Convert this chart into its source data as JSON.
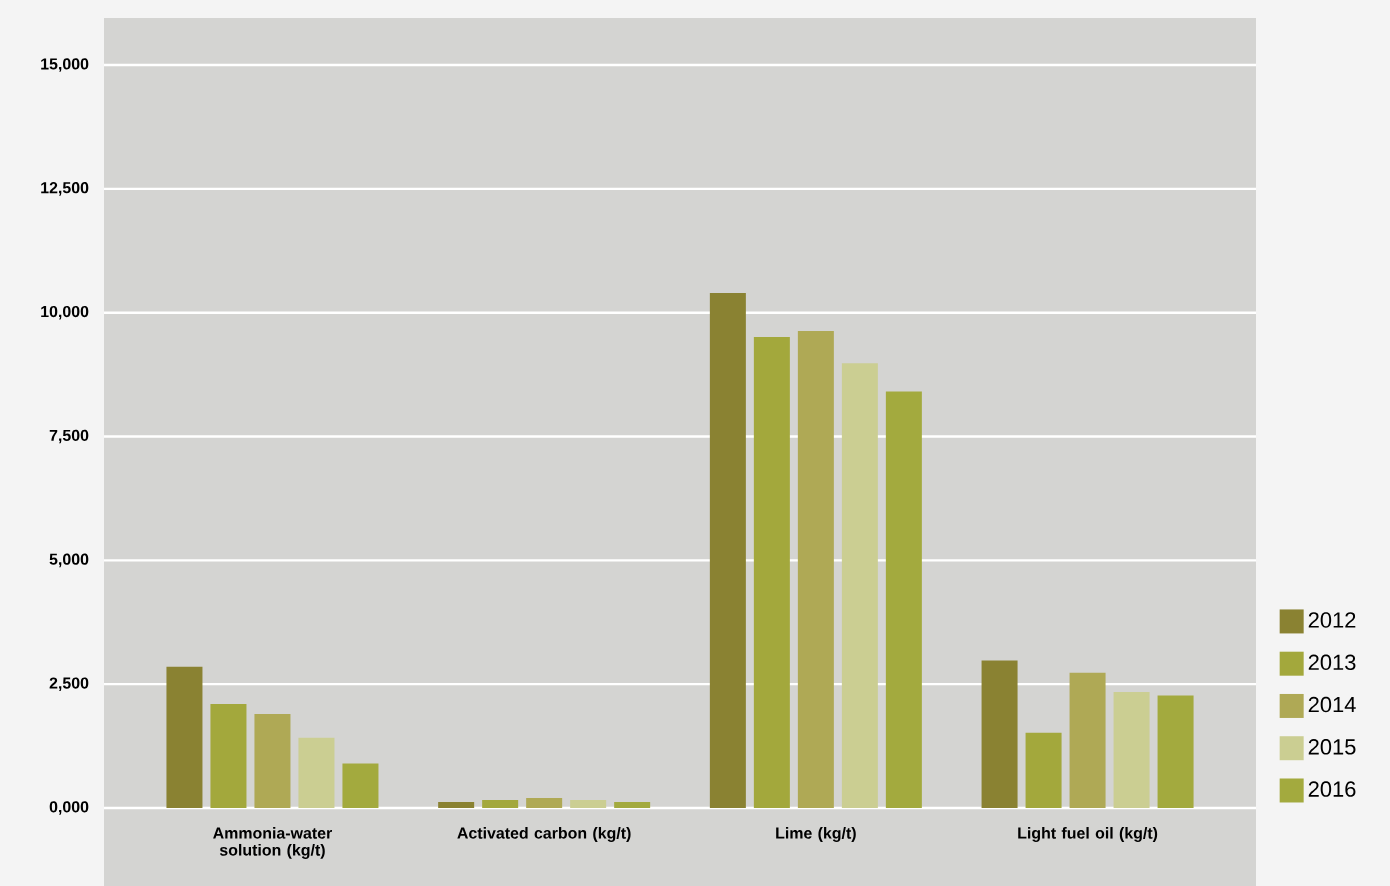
{
  "chart_data": {
    "type": "bar",
    "categories": [
      "Ammonia-water solution (kg/t)",
      "Activated carbon (kg/t)",
      "Lime (kg/t)",
      "Light fuel oil (kg/t)"
    ],
    "series": [
      {
        "name": "2012",
        "color": "#8a8232",
        "values": [
          2850,
          120,
          10400,
          2980
        ]
      },
      {
        "name": "2013",
        "color": "#a3a83c",
        "values": [
          2100,
          160,
          9510,
          1520
        ]
      },
      {
        "name": "2014",
        "color": "#afa955",
        "values": [
          1900,
          200,
          9630,
          2730
        ]
      },
      {
        "name": "2015",
        "color": "#cbce92",
        "values": [
          1420,
          160,
          8980,
          2340
        ]
      },
      {
        "name": "2016",
        "color": "#a3aa3e",
        "values": [
          900,
          120,
          8410,
          2270
        ]
      }
    ],
    "ylim": [
      0,
      15950
    ],
    "yticks": [
      {
        "value": 0,
        "label": "0,000"
      },
      {
        "value": 2500,
        "label": "2,500"
      },
      {
        "value": 5000,
        "label": "5,000"
      },
      {
        "value": 7500,
        "label": "7,500"
      },
      {
        "value": 10000,
        "label": "10,000"
      },
      {
        "value": 12500,
        "label": "12,500"
      },
      {
        "value": 15000,
        "label": "15,000"
      }
    ],
    "grid": "y",
    "legend": "right"
  }
}
